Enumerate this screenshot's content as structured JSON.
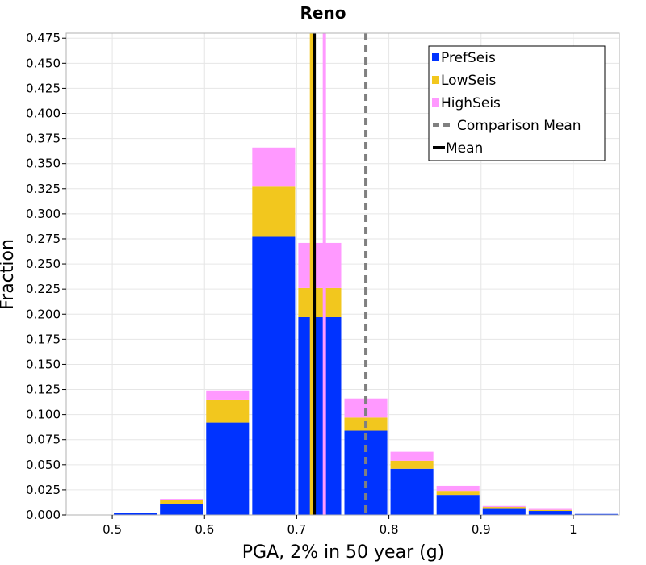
{
  "chart_data": {
    "type": "bar",
    "stacked": true,
    "title": "Reno",
    "xlabel": "PGA, 2% in 50 year (g)",
    "ylabel": "Fraction",
    "xlim": [
      0.45,
      1.05
    ],
    "ylim": [
      0,
      0.48
    ],
    "xticks": [
      "0.5",
      "0.6",
      "0.7",
      "0.8",
      "0.9",
      "1"
    ],
    "yticks": [
      "0.000",
      "0.025",
      "0.050",
      "0.075",
      "0.100",
      "0.125",
      "0.150",
      "0.175",
      "0.200",
      "0.225",
      "0.250",
      "0.275",
      "0.300",
      "0.325",
      "0.350",
      "0.375",
      "0.400",
      "0.425",
      "0.450",
      "0.475"
    ],
    "grid": true,
    "bin_width": 0.05,
    "bin_centers": [
      0.475,
      0.525,
      0.575,
      0.625,
      0.675,
      0.725,
      0.775,
      0.825,
      0.875,
      0.925,
      0.975,
      1.025
    ],
    "series": [
      {
        "name": "PrefSeis",
        "color": "#0033ff",
        "values": [
          0.0,
          0.002,
          0.011,
          0.092,
          0.277,
          0.197,
          0.084,
          0.046,
          0.02,
          0.006,
          0.004,
          0.001
        ]
      },
      {
        "name": "LowSeis",
        "color": "#f2c71e",
        "values": [
          0.0,
          0.0,
          0.004,
          0.023,
          0.05,
          0.029,
          0.013,
          0.008,
          0.004,
          0.002,
          0.001,
          0.0
        ]
      },
      {
        "name": "HighSeis",
        "color": "#ff99ff",
        "values": [
          0.0,
          0.0,
          0.001,
          0.009,
          0.039,
          0.045,
          0.019,
          0.009,
          0.005,
          0.001,
          0.001,
          0.0
        ]
      }
    ],
    "vertical_lines": [
      {
        "name": "LowSeis mean",
        "x": 0.716,
        "color": "#f2c71e",
        "style": "solid"
      },
      {
        "name": "HighSeis mean",
        "x": 0.73,
        "color": "#ff99ff",
        "style": "solid"
      },
      {
        "name": "Mean",
        "x": 0.719,
        "color": "#000000",
        "style": "solid"
      },
      {
        "name": "Comparison Mean",
        "x": 0.775,
        "color": "#808080",
        "style": "dashed"
      }
    ],
    "legend": {
      "position": "top-right",
      "entries": [
        {
          "label": "PrefSeis",
          "kind": "box",
          "color": "#0033ff"
        },
        {
          "label": "LowSeis",
          "kind": "box",
          "color": "#f2c71e"
        },
        {
          "label": "HighSeis",
          "kind": "box",
          "color": "#ff99ff"
        },
        {
          "label": "Comparison Mean",
          "kind": "dashed-line",
          "color": "#808080"
        },
        {
          "label": "Mean",
          "kind": "line",
          "color": "#000000"
        }
      ]
    }
  }
}
